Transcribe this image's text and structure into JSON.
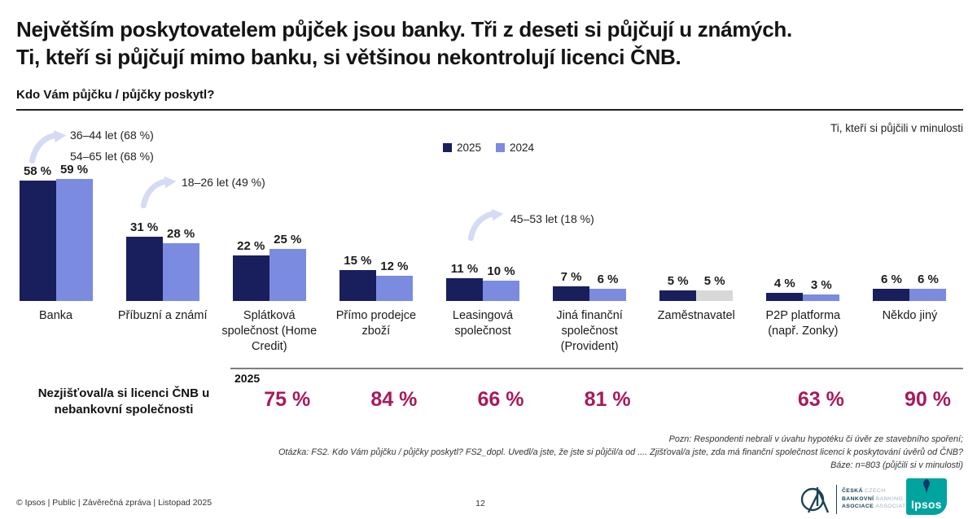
{
  "slide": {
    "title_line1": "Největším poskytovatelem půjček jsou banky. Tři z deseti si půjčují u známých.",
    "title_line2": "Ti, kteří si půjčují mimo banku, si většinou nekontrolují licenci ČNB.",
    "question": "Kdo Vám půjčku / půjčky poskytl?",
    "audience_note": "Ti, kteří si půjčili v minulosti"
  },
  "legend": {
    "items": [
      {
        "label": "2025",
        "color": "#181F5C"
      },
      {
        "label": "2024",
        "color": "#7B8BE0"
      }
    ]
  },
  "chart_data": {
    "type": "bar",
    "title": "Kdo Vám půjčku / půjčky poskytl?",
    "categories": [
      "Banka",
      "Příbuzní a známí",
      "Splátková společnost (Home Credit)",
      "Přímo prodejce zboží",
      "Leasingová společnost",
      "Jiná finanční společnost (Provident)",
      "Zaměstnavatel",
      "P2P platforma (např. Zonky)",
      "Někdo jiný"
    ],
    "series": [
      {
        "name": "2025",
        "color": "#181F5C",
        "values": [
          58,
          31,
          22,
          15,
          11,
          7,
          5,
          4,
          6
        ]
      },
      {
        "name": "2024",
        "color": "#7B8BE0",
        "values": [
          59,
          28,
          25,
          12,
          10,
          6,
          5,
          3,
          6
        ]
      }
    ],
    "special_colors": [
      {
        "series_index": 1,
        "category_index": 6,
        "color": "#D8D8D8"
      }
    ],
    "value_suffix": " %",
    "ylim": [
      0,
      60
    ],
    "legend_position": "top-center",
    "grid": false,
    "annotations": [
      {
        "lines": [
          "36–44 let (68 %)",
          "54–65 let (68 %)"
        ],
        "target": "Banka"
      },
      {
        "lines": [
          "18–26 let (49 %)"
        ],
        "target": "Příbuzní a známí"
      },
      {
        "lines": [
          "45–53 let (18 %)"
        ],
        "target": "Leasingová společnost"
      }
    ]
  },
  "licence_row": {
    "label_line1": "Nezjišťoval/a si licenci ČNB u",
    "label_line2": "nebankovní společnosti",
    "year_label": "2025",
    "values": [
      "",
      "",
      "75 %",
      "84 %",
      "66 %",
      "81 %",
      "",
      "63 %",
      "90 %"
    ]
  },
  "footnotes": {
    "line1": "Pozn: Respondenti nebrali v úvahu hypotéku či úvěr ze stavebního spoření;",
    "line2": "Otázka: FS2. Kdo Vám půjčku / půjčky poskytl? FS2_dopl. Uvedl/a jste, že jste si půjčil/a od .... Zjišťoval/a jste, zda má finanční společnost licenci k poskytování úvěrů od ČNB?",
    "line3": "Báze: n=803 (půjčili si v minulosti)"
  },
  "footer": {
    "copyright": "© Ipsos | Public | Závěrečná zpráva | Listopad 2025",
    "page_number": "12",
    "cba_logo_rows": [
      {
        "bold": "ČESKÁ",
        "light": "CZECH"
      },
      {
        "bold": "BANKOVNÍ",
        "light": "BANKING"
      },
      {
        "bold": "ASOCIACE",
        "light": "ASSOCIATION"
      }
    ],
    "ipsos_logo_text": "Ipsos"
  },
  "colors": {
    "bar_2025": "#181F5C",
    "bar_2024": "#7B8BE0",
    "bar_gray": "#D8D8D8",
    "accent_magenta": "#A8195B",
    "arrow_lavender": "#D5DBF5",
    "ipsos_teal": "#00A49E",
    "cba_navy": "#1C4355"
  }
}
